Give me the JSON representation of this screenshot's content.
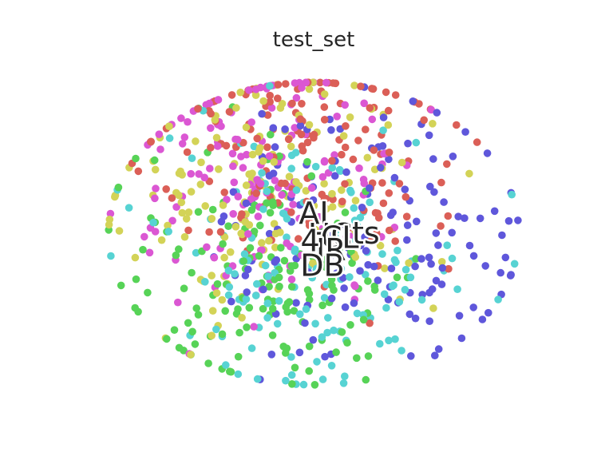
{
  "chart_data": {
    "type": "scatter",
    "title": "test_set",
    "xlabel": "",
    "ylabel": "",
    "axes_visible": false,
    "grid": false,
    "xlim": [
      -1.3,
      1.3
    ],
    "ylim": [
      -1.1,
      1.1
    ],
    "palette": [
      "#db5f57",
      "#d3d357",
      "#57d357",
      "#57d3d3",
      "#5f57db",
      "#db57d3"
    ],
    "class_centers": [
      [
        -0.05,
        0.55
      ],
      [
        -0.25,
        0.25
      ],
      [
        -0.25,
        -0.3
      ],
      [
        0.0,
        -0.15
      ],
      [
        0.35,
        0.0
      ],
      [
        -0.3,
        0.4
      ]
    ],
    "spread": 0.45,
    "points_per_class": 150,
    "annotations": [
      {
        "text": "AI",
        "x": 0.0,
        "y": 0.12
      },
      {
        "text": "HCI",
        "x": 0.12,
        "y": -0.02
      },
      {
        "text": "CL",
        "x": 0.15,
        "y": -0.04
      },
      {
        "text": "ts",
        "x": 0.3,
        "y": -0.01
      },
      {
        "text": "IR",
        "x": 0.1,
        "y": -0.12
      },
      {
        "text": "DB",
        "x": 0.05,
        "y": -0.22
      },
      {
        "text": "4",
        "x": -0.02,
        "y": -0.06
      }
    ]
  }
}
